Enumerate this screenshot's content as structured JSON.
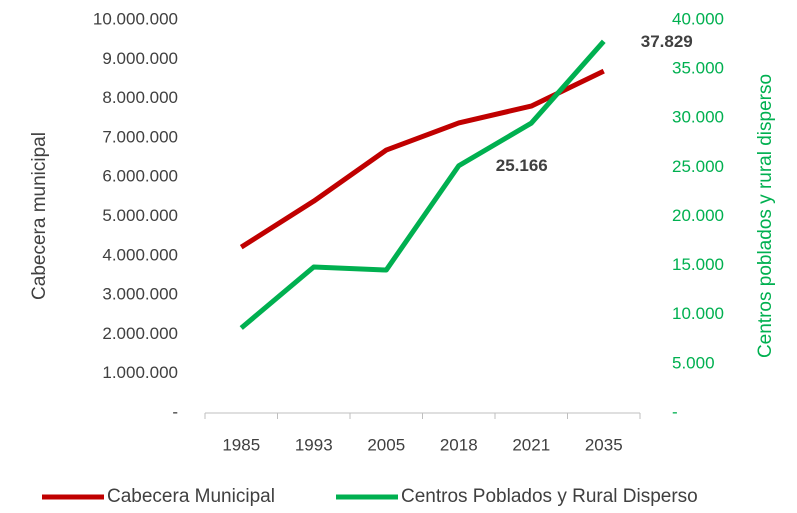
{
  "chart_data": {
    "type": "line",
    "categories": [
      "1985",
      "1993",
      "2005",
      "2018",
      "2021",
      "2035"
    ],
    "y_label": "Cabecera municipal",
    "y2_label": "Centros poblados y rural disperso",
    "series": [
      {
        "name": "Cabecera Municipal",
        "color": "#c00000",
        "values": [
          4220000,
          5390000,
          6690000,
          7380000,
          7810000,
          8700000
        ]
      },
      {
        "name": "Centros Poblados y Rural Disperso",
        "color": "#00b050",
        "axis": "y2",
        "values": [
          8650,
          14860,
          14550,
          25166,
          29500,
          37829
        ],
        "value_labels": [
          null,
          null,
          null,
          "25.166",
          null,
          "37.829"
        ]
      }
    ],
    "ylim": [
      0,
      10000000
    ],
    "yticks": [
      {
        "value": 0,
        "label": "-"
      },
      {
        "value": 1000000,
        "label": "1.000.000"
      },
      {
        "value": 2000000,
        "label": "2.000.000"
      },
      {
        "value": 3000000,
        "label": "3.000.000"
      },
      {
        "value": 4000000,
        "label": "4.000.000"
      },
      {
        "value": 5000000,
        "label": "5.000.000"
      },
      {
        "value": 6000000,
        "label": "6.000.000"
      },
      {
        "value": 7000000,
        "label": "7.000.000"
      },
      {
        "value": 8000000,
        "label": "8.000.000"
      },
      {
        "value": 9000000,
        "label": "9.000.000"
      },
      {
        "value": 10000000,
        "label": "10.000.000"
      }
    ],
    "y2lim": [
      0,
      40000
    ],
    "y2ticks": [
      {
        "value": 0,
        "label": "-"
      },
      {
        "value": 5000,
        "label": "5.000"
      },
      {
        "value": 10000,
        "label": "10.000"
      },
      {
        "value": 15000,
        "label": "15.000"
      },
      {
        "value": 20000,
        "label": "20.000"
      },
      {
        "value": 25000,
        "label": "25.000"
      },
      {
        "value": 30000,
        "label": "30.000"
      },
      {
        "value": 35000,
        "label": "35.000"
      },
      {
        "value": 40000,
        "label": "40.000"
      }
    ],
    "legend": "bottom",
    "grid": false
  }
}
